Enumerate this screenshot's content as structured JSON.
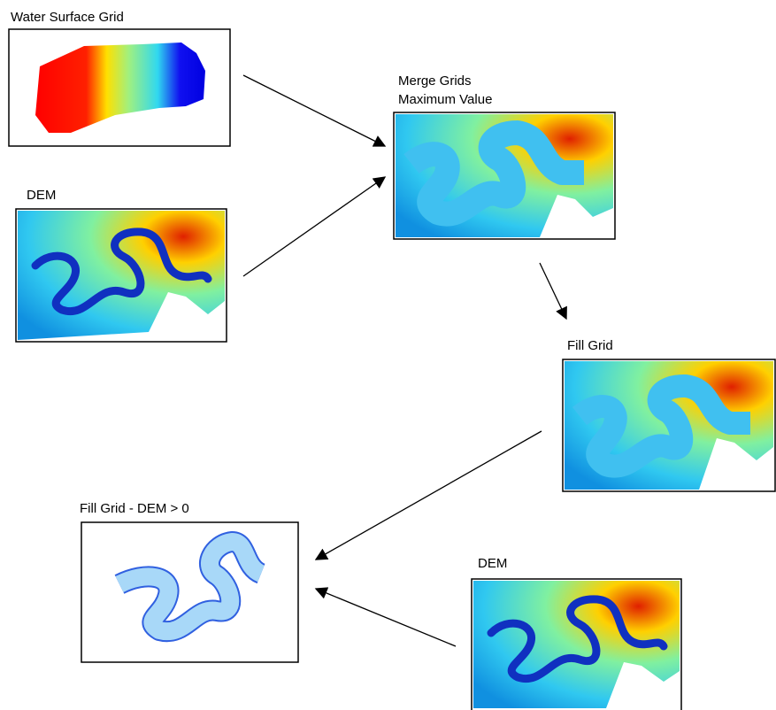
{
  "nodes": [
    {
      "label": "Water Surface Grid"
    },
    {
      "label": "DEM"
    },
    {
      "label": "Merge Grids",
      "sublabel": "Maximum Value"
    },
    {
      "label": "Fill Grid"
    },
    {
      "label": "Fill Grid - DEM > 0"
    },
    {
      "label": "DEM"
    }
  ]
}
